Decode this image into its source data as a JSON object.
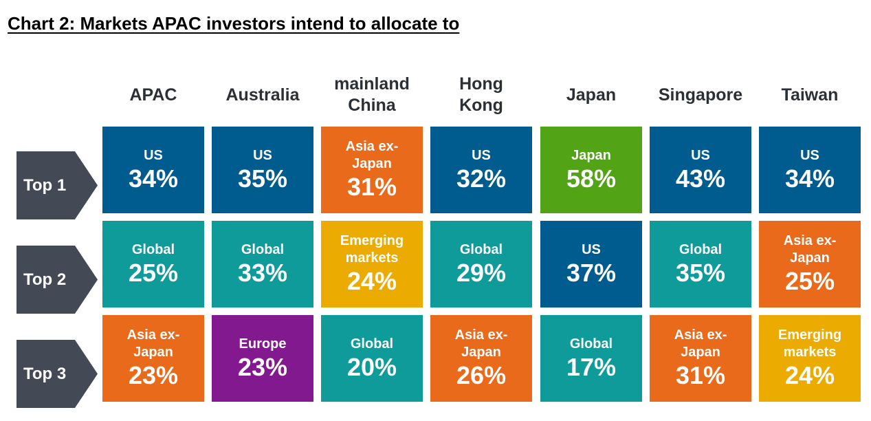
{
  "title": "Chart 2: Markets APAC investors intend to allocate to",
  "colors": {
    "US": "#005c8e",
    "Global": "#0f9b99",
    "Asia ex-Japan": "#e86a1a",
    "Emerging markets": "#ecab00",
    "Japan": "#52a416",
    "Europe": "#82198e",
    "label_bg": "#434a56"
  },
  "columns": [
    "APAC",
    "Australia",
    "mainland China",
    "Hong Kong",
    "Japan",
    "Singapore",
    "Taiwan"
  ],
  "rows": [
    "Top 1",
    "Top 2",
    "Top 3"
  ],
  "chart_data": {
    "type": "table",
    "title": "Chart 2: Markets APAC investors intend to allocate to",
    "columns": [
      "APAC",
      "Australia",
      "mainland China",
      "Hong Kong",
      "Japan",
      "Singapore",
      "Taiwan"
    ],
    "rows": [
      "Top 1",
      "Top 2",
      "Top 3"
    ],
    "cells": [
      [
        {
          "market": "US",
          "value": "34%"
        },
        {
          "market": "US",
          "value": "35%"
        },
        {
          "market": "Asia ex-Japan",
          "value": "31%"
        },
        {
          "market": "US",
          "value": "32%"
        },
        {
          "market": "Japan",
          "value": "58%"
        },
        {
          "market": "US",
          "value": "43%"
        },
        {
          "market": "US",
          "value": "34%"
        }
      ],
      [
        {
          "market": "Global",
          "value": "25%"
        },
        {
          "market": "Global",
          "value": "33%"
        },
        {
          "market": "Emerging markets",
          "value": "24%"
        },
        {
          "market": "Global",
          "value": "29%"
        },
        {
          "market": "US",
          "value": "37%"
        },
        {
          "market": "Global",
          "value": "35%"
        },
        {
          "market": "Asia ex-Japan",
          "value": "25%"
        }
      ],
      [
        {
          "market": "Asia ex-Japan",
          "value": "23%"
        },
        {
          "market": "Europe",
          "value": "23%"
        },
        {
          "market": "Global",
          "value": "20%"
        },
        {
          "market": "Asia ex-Japan",
          "value": "26%"
        },
        {
          "market": "Global",
          "value": "17%"
        },
        {
          "market": "Asia ex-Japan",
          "value": "31%"
        },
        {
          "market": "Emerging markets",
          "value": "24%"
        }
      ]
    ]
  },
  "display_labels": {
    "US": "US",
    "Global": "Global",
    "Asia ex-Japan": "Asia ex-\nJapan",
    "Emerging markets": "Emerging\nmarkets",
    "Japan": "Japan",
    "Europe": "Europe",
    "mainland China": "mainland\nChina",
    "Hong Kong": "Hong\nKong"
  }
}
